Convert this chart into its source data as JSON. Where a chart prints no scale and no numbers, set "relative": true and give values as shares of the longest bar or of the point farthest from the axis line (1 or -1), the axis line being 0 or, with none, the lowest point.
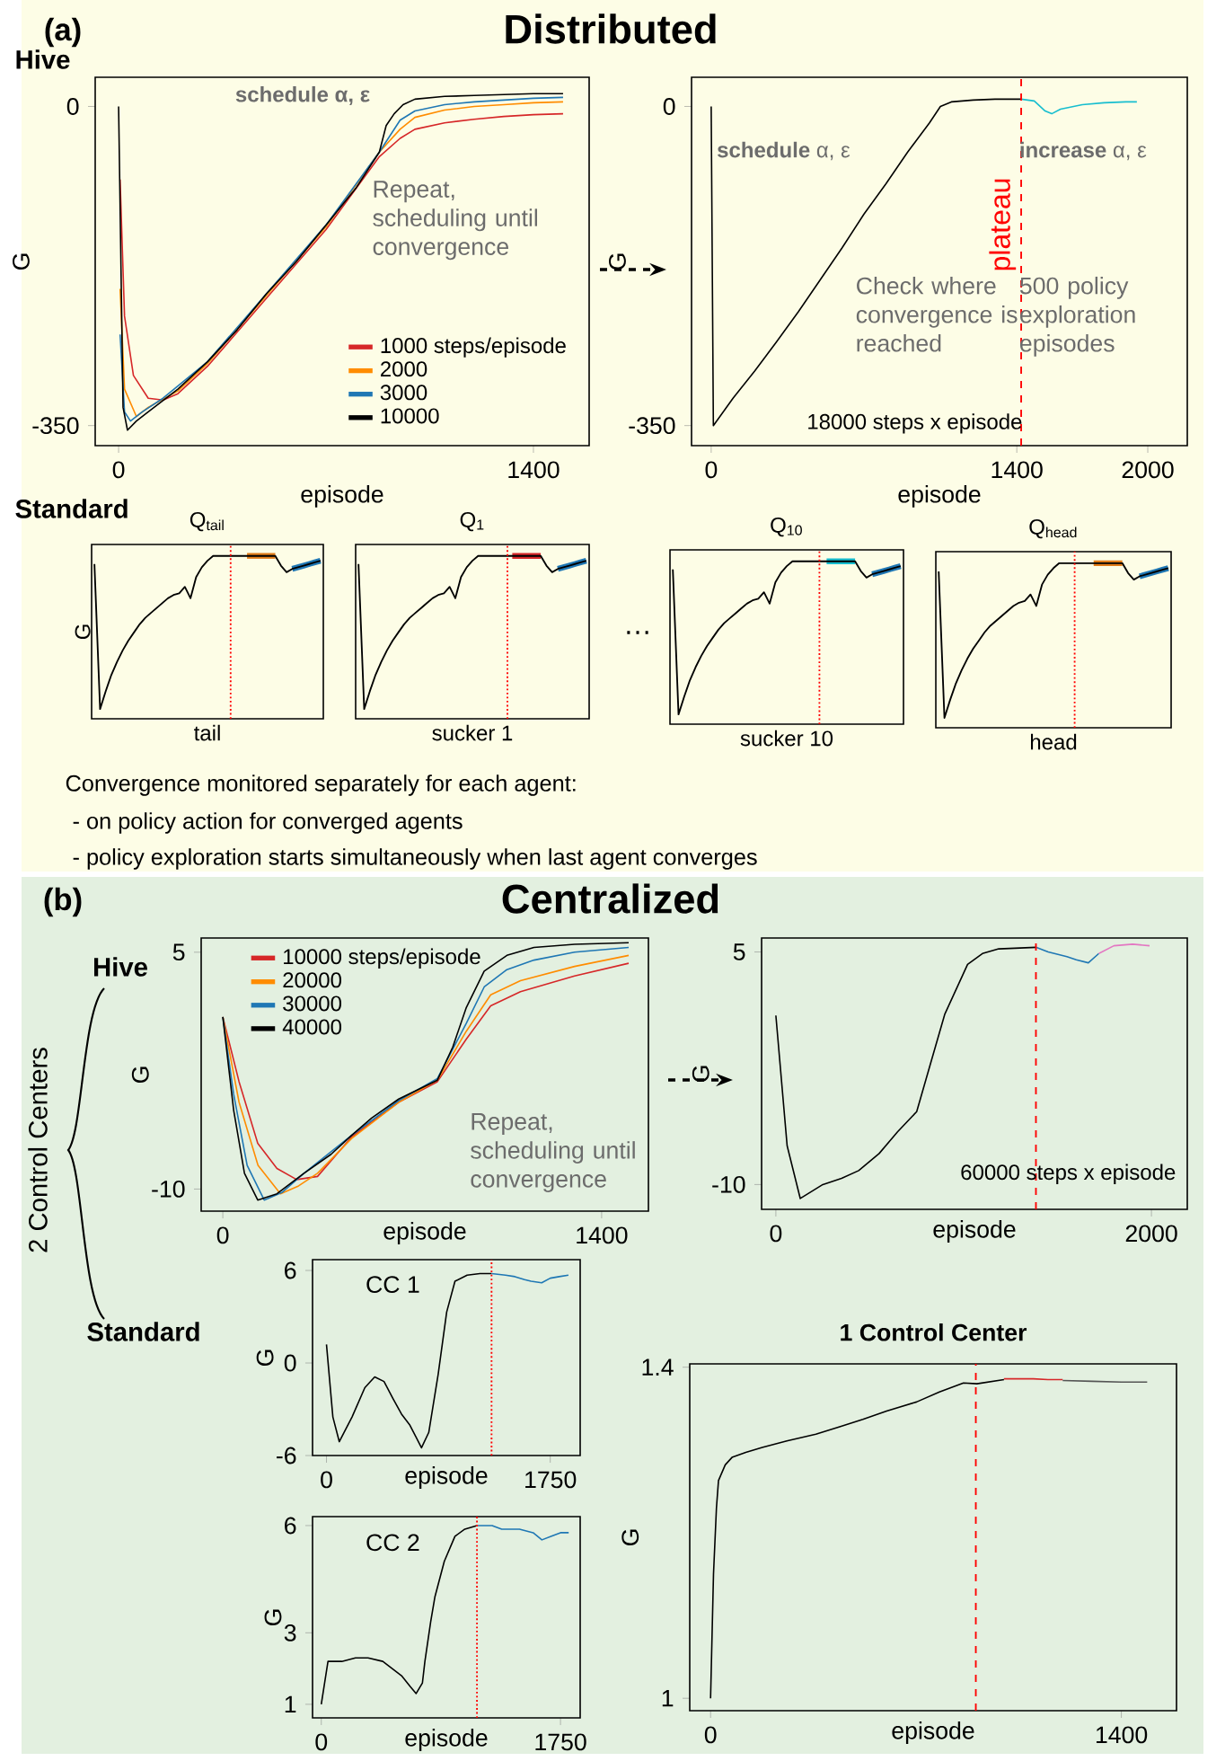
{
  "chart_data": [
    {
      "type": "other",
      "annotations": [
        "(a)",
        "Distributed",
        "Hive",
        "Standard",
        "…",
        "Convergence monitored separately for each agent:",
        "- on policy action for converged agents",
        "- policy exploration starts simultaneously when last agent converges"
      ]
    },
    {
      "type": "line",
      "xlabel": "episode",
      "ylabel": "G",
      "xlim": [
        -79,
        1588
      ],
      "ylim": [
        -372,
        32
      ],
      "xticks": [
        0,
        1400
      ],
      "yticks": [
        -350,
        0
      ],
      "legend": "bottom right",
      "annotations": [
        "**schedule** α, ε",
        "Repeat, scheduling until convergence"
      ],
      "series": [
        {
          "name": "1000 steps/episode",
          "color": "#d62728",
          "x": [
            5,
            20,
            50,
            100,
            150,
            200,
            300,
            500,
            700,
            880,
            950,
            1000,
            1100,
            1200,
            1300,
            1400,
            1500
          ],
          "values": [
            -80,
            -230,
            -295,
            -320,
            -322,
            -315,
            -285,
            -210,
            -135,
            -55,
            -35,
            -25,
            -18,
            -14,
            -11,
            -9,
            -8
          ]
        },
        {
          "name": "2000",
          "color": "#ff8c00",
          "x": [
            5,
            20,
            60,
            100,
            200,
            300,
            500,
            700,
            880,
            950,
            1000,
            1100,
            1200,
            1300,
            1400,
            1500
          ],
          "values": [
            -200,
            -310,
            -340,
            -330,
            -312,
            -282,
            -207,
            -132,
            -50,
            -25,
            -12,
            -4,
            0,
            2,
            4,
            5
          ]
        },
        {
          "name": "3000",
          "color": "#1f77b4",
          "x": [
            5,
            20,
            40,
            80,
            150,
            300,
            500,
            700,
            880,
            950,
            1000,
            1100,
            1200,
            1300,
            1400,
            1500
          ],
          "values": [
            -250,
            -335,
            -345,
            -335,
            -320,
            -280,
            -205,
            -130,
            -50,
            -15,
            -5,
            2,
            5,
            7,
            9,
            10
          ]
        },
        {
          "name": "10000",
          "color": "#000000",
          "x": [
            0,
            15,
            30,
            60,
            100,
            200,
            300,
            400,
            500,
            600,
            700,
            800,
            880,
            903,
            930,
            960,
            1000,
            1100,
            1200,
            1300,
            1400,
            1500
          ],
          "values": [
            0,
            -330,
            -355,
            -345,
            -335,
            -310,
            -280,
            -245,
            -205,
            -170,
            -130,
            -90,
            -50,
            -21,
            -8,
            2,
            8,
            11,
            12,
            13,
            14,
            14
          ]
        }
      ]
    },
    {
      "type": "line",
      "xlabel": "episode",
      "ylabel": "G",
      "xlim": [
        -90,
        2181
      ],
      "ylim": [
        -372,
        32
      ],
      "xticks": [
        0,
        1400,
        2000
      ],
      "yticks": [
        -350,
        0
      ],
      "annotations": [
        "**schedule** α, ε",
        "**increase** α, ε",
        "Check where convergence is reached",
        "500 policy exploration episodes",
        "18000 steps x episode"
      ],
      "ref_lines": [
        {
          "axis": "x",
          "value": 1420,
          "label": "plateau",
          "color": "#ff0000",
          "line_style": "dashed"
        }
      ],
      "series": [
        {
          "color": "#000000",
          "x": [
            0,
            10,
            100,
            200,
            300,
            400,
            500,
            600,
            700,
            800,
            900,
            1000,
            1050,
            1100,
            1200,
            1300,
            1420
          ],
          "values": [
            0,
            -350,
            -320,
            -290,
            -258,
            -225,
            -190,
            -155,
            -118,
            -85,
            -50,
            -18,
            0,
            5,
            7,
            8,
            8
          ]
        },
        {
          "color": "#17becf",
          "x": [
            1420,
            1480,
            1530,
            1560,
            1600,
            1700,
            1800,
            1900,
            1950
          ],
          "values": [
            8,
            6,
            -5,
            -8,
            -3,
            2,
            4,
            5,
            5
          ]
        }
      ]
    },
    {
      "type": "line",
      "relative": true,
      "title": "Q$_{tail}$",
      "ylabel": "G",
      "xlabel": "tail",
      "categories": [
        null,
        null,
        null,
        null,
        null,
        null,
        null,
        null,
        null,
        null,
        null,
        null,
        null,
        null,
        null,
        null,
        null,
        null,
        null,
        null,
        null,
        null,
        null,
        null,
        null,
        null,
        null,
        null,
        null,
        null,
        null,
        null,
        null,
        null,
        null,
        null,
        null,
        null,
        null,
        null,
        null
      ],
      "series": [
        {
          "color": "#e07b18",
          "values": [
            null,
            null,
            null,
            null,
            null,
            null,
            null,
            null,
            null,
            null,
            null,
            null,
            null,
            null,
            null,
            null,
            null,
            null,
            null,
            null,
            null,
            null,
            null,
            null,
            null,
            null,
            null,
            1.0,
            1.0,
            1.0,
            1.0,
            1.0,
            1.0,
            null,
            null,
            null,
            null,
            null,
            null,
            null,
            null
          ]
        },
        {
          "color": "#1f77b4",
          "values": [
            null,
            null,
            null,
            null,
            null,
            null,
            null,
            null,
            null,
            null,
            null,
            null,
            null,
            null,
            null,
            null,
            null,
            null,
            null,
            null,
            null,
            null,
            null,
            null,
            null,
            null,
            null,
            null,
            null,
            null,
            null,
            null,
            null,
            null,
            null,
            0.92,
            0.93,
            0.94,
            0.95,
            0.96,
            0.97
          ]
        },
        {
          "color": "#000000",
          "values": [
            0.95,
            0.06,
            0.17,
            0.27,
            0.35,
            0.42,
            0.48,
            0.53,
            0.58,
            0.62,
            0.65,
            0.68,
            0.71,
            0.74,
            0.76,
            0.77,
            0.81,
            0.74,
            0.87,
            0.93,
            0.97,
            1.0,
            1.0,
            1.0,
            1.0,
            1.0,
            1.0,
            1.0,
            1.0,
            1.0,
            1.0,
            1.0,
            1.0,
            0.94,
            0.9,
            0.92,
            0.93,
            0.94,
            0.95,
            0.96,
            0.97
          ]
        }
      ]
    },
    {
      "type": "line",
      "relative": true,
      "title": "Q$_{1}$",
      "xlabel": "sucker 1",
      "categories": [
        null,
        null,
        null,
        null,
        null,
        null,
        null,
        null,
        null,
        null,
        null,
        null,
        null,
        null,
        null,
        null,
        null,
        null,
        null,
        null,
        null,
        null,
        null,
        null,
        null,
        null,
        null,
        null,
        null,
        null,
        null,
        null,
        null,
        null,
        null,
        null,
        null,
        null,
        null,
        null,
        null
      ],
      "series": [
        {
          "color": "#d62728",
          "values": [
            null,
            null,
            null,
            null,
            null,
            null,
            null,
            null,
            null,
            null,
            null,
            null,
            null,
            null,
            null,
            null,
            null,
            null,
            null,
            null,
            null,
            null,
            null,
            null,
            null,
            null,
            null,
            1.0,
            1.0,
            1.0,
            1.0,
            1.0,
            1.0,
            null,
            null,
            null,
            null,
            null,
            null,
            null,
            null
          ]
        },
        {
          "color": "#1f77b4",
          "values": [
            null,
            null,
            null,
            null,
            null,
            null,
            null,
            null,
            null,
            null,
            null,
            null,
            null,
            null,
            null,
            null,
            null,
            null,
            null,
            null,
            null,
            null,
            null,
            null,
            null,
            null,
            null,
            null,
            null,
            null,
            null,
            null,
            null,
            null,
            null,
            0.92,
            0.93,
            0.94,
            0.95,
            0.96,
            0.97
          ]
        },
        {
          "color": "#000000",
          "values": [
            0.95,
            0.06,
            0.17,
            0.27,
            0.35,
            0.42,
            0.48,
            0.53,
            0.58,
            0.62,
            0.65,
            0.68,
            0.71,
            0.74,
            0.76,
            0.77,
            0.81,
            0.74,
            0.87,
            0.93,
            0.97,
            1.0,
            1.0,
            1.0,
            1.0,
            1.0,
            1.0,
            1.0,
            1.0,
            1.0,
            1.0,
            1.0,
            1.0,
            0.94,
            0.9,
            0.92,
            0.93,
            0.94,
            0.95,
            0.96,
            0.97
          ]
        }
      ]
    },
    {
      "type": "line",
      "relative": true,
      "title": "Q$_{10}$",
      "xlabel": "sucker 10",
      "categories": [
        null,
        null,
        null,
        null,
        null,
        null,
        null,
        null,
        null,
        null,
        null,
        null,
        null,
        null,
        null,
        null,
        null,
        null,
        null,
        null,
        null,
        null,
        null,
        null,
        null,
        null,
        null,
        null,
        null,
        null,
        null,
        null,
        null,
        null,
        null,
        null,
        null,
        null,
        null,
        null,
        null
      ],
      "series": [
        {
          "color": "#17becf",
          "values": [
            null,
            null,
            null,
            null,
            null,
            null,
            null,
            null,
            null,
            null,
            null,
            null,
            null,
            null,
            null,
            null,
            null,
            null,
            null,
            null,
            null,
            null,
            null,
            null,
            null,
            null,
            null,
            1.0,
            1.0,
            1.0,
            1.0,
            1.0,
            1.0,
            null,
            null,
            null,
            null,
            null,
            null,
            null,
            null
          ]
        },
        {
          "color": "#1f77b4",
          "values": [
            null,
            null,
            null,
            null,
            null,
            null,
            null,
            null,
            null,
            null,
            null,
            null,
            null,
            null,
            null,
            null,
            null,
            null,
            null,
            null,
            null,
            null,
            null,
            null,
            null,
            null,
            null,
            null,
            null,
            null,
            null,
            null,
            null,
            null,
            null,
            0.92,
            0.93,
            0.94,
            0.95,
            0.96,
            0.97
          ]
        },
        {
          "color": "#000000",
          "values": [
            0.95,
            0.06,
            0.17,
            0.27,
            0.35,
            0.42,
            0.48,
            0.53,
            0.58,
            0.62,
            0.65,
            0.68,
            0.71,
            0.74,
            0.76,
            0.77,
            0.81,
            0.74,
            0.87,
            0.93,
            0.97,
            1.0,
            1.0,
            1.0,
            1.0,
            1.0,
            1.0,
            1.0,
            1.0,
            1.0,
            1.0,
            1.0,
            1.0,
            0.94,
            0.9,
            0.92,
            0.93,
            0.94,
            0.95,
            0.96,
            0.97
          ]
        }
      ]
    },
    {
      "type": "line",
      "relative": true,
      "title": "Q$_{head}$",
      "xlabel": "head",
      "categories": [
        null,
        null,
        null,
        null,
        null,
        null,
        null,
        null,
        null,
        null,
        null,
        null,
        null,
        null,
        null,
        null,
        null,
        null,
        null,
        null,
        null,
        null,
        null,
        null,
        null,
        null,
        null,
        null,
        null,
        null,
        null,
        null,
        null,
        null,
        null,
        null,
        null,
        null,
        null,
        null,
        null
      ],
      "series": [
        {
          "color": "#e07b18",
          "values": [
            null,
            null,
            null,
            null,
            null,
            null,
            null,
            null,
            null,
            null,
            null,
            null,
            null,
            null,
            null,
            null,
            null,
            null,
            null,
            null,
            null,
            null,
            null,
            null,
            null,
            null,
            null,
            1.0,
            1.0,
            1.0,
            1.0,
            1.0,
            1.0,
            null,
            null,
            null,
            null,
            null,
            null,
            null,
            null
          ]
        },
        {
          "color": "#1f77b4",
          "values": [
            null,
            null,
            null,
            null,
            null,
            null,
            null,
            null,
            null,
            null,
            null,
            null,
            null,
            null,
            null,
            null,
            null,
            null,
            null,
            null,
            null,
            null,
            null,
            null,
            null,
            null,
            null,
            null,
            null,
            null,
            null,
            null,
            null,
            null,
            null,
            0.92,
            0.93,
            0.94,
            0.95,
            0.96,
            0.97
          ]
        },
        {
          "color": "#000000",
          "values": [
            0.95,
            0.06,
            0.17,
            0.27,
            0.35,
            0.42,
            0.48,
            0.53,
            0.58,
            0.62,
            0.65,
            0.68,
            0.71,
            0.74,
            0.76,
            0.77,
            0.81,
            0.74,
            0.87,
            0.93,
            0.97,
            1.0,
            1.0,
            1.0,
            1.0,
            1.0,
            1.0,
            1.0,
            1.0,
            1.0,
            1.0,
            1.0,
            1.0,
            0.94,
            0.9,
            0.92,
            0.93,
            0.94,
            0.95,
            0.96,
            0.97
          ]
        }
      ]
    },
    {
      "type": "other",
      "annotations": [
        "(b)",
        "Centralized",
        "2 Control Centers",
        "Hive",
        "Standard"
      ]
    },
    {
      "type": "line",
      "xlabel": "episode",
      "ylabel": "G",
      "xlim": [
        -80,
        1573
      ],
      "ylim": [
        -11.4,
        5.9
      ],
      "xticks": [
        0,
        1400
      ],
      "yticks": [
        -10,
        5
      ],
      "legend": "top left",
      "annotations": [
        "Repeat, scheduling until convergence"
      ],
      "series": [
        {
          "name": "10000 steps/episode",
          "color": "#d62728",
          "x": [
            0,
            60,
            129,
            200,
            273,
            350,
            476,
            650,
            793,
            900,
            990,
            1100,
            1300,
            1500
          ],
          "values": [
            0.9,
            -3.2,
            -7.1,
            -8.7,
            -9.4,
            -9.2,
            -6.7,
            -4.5,
            -3.2,
            -0.5,
            1.6,
            2.5,
            3.5,
            4.3
          ]
        },
        {
          "name": "20000",
          "color": "#ff8c00",
          "x": [
            0,
            60,
            130,
            213,
            280,
            350,
            476,
            650,
            793,
            900,
            990,
            1100,
            1300,
            1500
          ],
          "values": [
            0.9,
            -4.5,
            -8.5,
            -10.3,
            -9.8,
            -9,
            -6.8,
            -4.5,
            -3.1,
            0,
            2.3,
            3.2,
            4.1,
            4.8
          ]
        },
        {
          "name": "30000",
          "color": "#1f77b4",
          "x": [
            0,
            40,
            90,
            153,
            220,
            300,
            476,
            650,
            793,
            900,
            966,
            1050,
            1150,
            1300,
            1500
          ],
          "values": [
            0.9,
            -4,
            -8.5,
            -10.7,
            -10.2,
            -9,
            -6.6,
            -4.4,
            -3.0,
            0.5,
            2.8,
            3.9,
            4.5,
            5.0,
            5.3
          ]
        },
        {
          "name": "40000",
          "color": "#000000",
          "x": [
            0,
            40,
            80,
            129,
            200,
            300,
            400,
            476,
            550,
            650,
            793,
            850,
            900,
            966,
            1050,
            1150,
            1300,
            1500
          ],
          "values": [
            0.9,
            -5,
            -9,
            -10.7,
            -10.3,
            -9,
            -7.8,
            -6.6,
            -5.5,
            -4.3,
            -3.1,
            -1.0,
            1.5,
            3.8,
            4.8,
            5.3,
            5.5,
            5.6
          ]
        }
      ]
    },
    {
      "type": "line",
      "xlabel": "episode",
      "ylabel": "G",
      "xlim": [
        -76,
        2191
      ],
      "ylim": [
        -11.6,
        5.9
      ],
      "xticks": [
        0,
        2000
      ],
      "yticks": [
        -10,
        5
      ],
      "annotations": [
        "60000 steps x episode"
      ],
      "ref_lines": [
        {
          "axis": "x",
          "value": 1385,
          "color": "#ff0000",
          "line_style": "dashed"
        }
      ],
      "series": [
        {
          "color": "#000000",
          "x": [
            0,
            60,
            130,
            250,
            350,
            441,
            550,
            648,
            750,
            814,
            900,
            1021,
            1100,
            1187,
            1385
          ],
          "values": [
            0.9,
            -7.5,
            -10.9,
            -10.0,
            -9.6,
            -9.1,
            -8.0,
            -6.6,
            -5.3,
            -2.6,
            1.0,
            4.2,
            4.9,
            5.2,
            5.3
          ]
        },
        {
          "color": "#1f77b4",
          "x": [
            1385,
            1450,
            1550,
            1600,
            1664,
            1720
          ],
          "values": [
            5.3,
            5.0,
            4.7,
            4.5,
            4.3,
            4.9
          ]
        },
        {
          "color": "#e377c2",
          "x": [
            1720,
            1800,
            1900,
            1990
          ],
          "values": [
            4.9,
            5.4,
            5.5,
            5.4
          ]
        }
      ]
    },
    {
      "type": "line",
      "title": "CC 1",
      "xlabel": "episode",
      "ylabel": "G",
      "xlim": [
        -109,
        1984
      ],
      "ylim": [
        -6,
        6.7
      ],
      "xticks": [
        0,
        1750
      ],
      "yticks": [
        -6,
        0,
        6
      ],
      "ref_lines": [
        {
          "axis": "x",
          "value": 1291,
          "color": "#ff0000",
          "line_style": "dotted"
        }
      ],
      "series": [
        {
          "color": "#000000",
          "x": [
            0,
            50,
            100,
            200,
            300,
            377,
            450,
            520,
            586,
            650,
            700,
            743,
            800,
            874,
            940,
            1005,
            1100,
            1200,
            1291
          ],
          "values": [
            1.2,
            -3.5,
            -5.1,
            -3.5,
            -1.6,
            -0.9,
            -1.2,
            -2.3,
            -3.3,
            -4.0,
            -4.8,
            -5.5,
            -4.5,
            -0.7,
            3.3,
            5.3,
            5.7,
            5.8,
            5.8
          ]
        },
        {
          "color": "#1f77b4",
          "x": [
            1291,
            1400,
            1474,
            1550,
            1600,
            1683,
            1750,
            1820,
            1892
          ],
          "values": [
            5.8,
            5.7,
            5.6,
            5.4,
            5.3,
            5.2,
            5.5,
            5.6,
            5.7
          ]
        }
      ]
    },
    {
      "type": "line",
      "title": "CC 2",
      "xlabel": "episode",
      "ylabel": "G",
      "xlim": [
        -64,
        1894
      ],
      "ylim": [
        0.62,
        6.25
      ],
      "xticks": [
        0,
        1750
      ],
      "yticks": [
        1,
        3,
        6
      ],
      "ref_lines": [
        {
          "axis": "x",
          "value": 1139,
          "color": "#ff0000",
          "line_style": "dotted"
        }
      ],
      "series": [
        {
          "color": "#000000",
          "x": [
            0,
            49,
            150,
            250,
            342,
            450,
            587,
            650,
            694,
            740,
            758,
            800,
            831,
            900,
            978,
            1050,
            1139
          ],
          "values": [
            1.0,
            2.2,
            2.2,
            2.3,
            2.3,
            2.2,
            1.8,
            1.5,
            1.3,
            1.6,
            2.2,
            3.3,
            4.0,
            5.0,
            5.7,
            5.9,
            6.0
          ]
        },
        {
          "color": "#1f77b4",
          "x": [
            1139,
            1250,
            1320,
            1450,
            1550,
            1614,
            1680,
            1750,
            1810
          ],
          "values": [
            6.0,
            6.0,
            5.9,
            5.9,
            5.8,
            5.6,
            5.7,
            5.8,
            5.8
          ]
        }
      ]
    },
    {
      "type": "line",
      "title": "1 Control Center",
      "xlabel": "episode",
      "ylabel": "G",
      "xlim": [
        -71,
        1588
      ],
      "ylim": [
        0.985,
        1.404
      ],
      "xticks": [
        0,
        1400
      ],
      "yticks": [
        1,
        1.4
      ],
      "ref_lines": [
        {
          "axis": "x",
          "value": 904,
          "color": "#ff0000",
          "line_style": "dashed"
        }
      ],
      "series": [
        {
          "color": "#000000",
          "x": [
            0,
            10,
            20,
            27,
            50,
            73,
            120,
            176,
            260,
            359,
            440,
            519,
            600,
            702,
            780,
            862,
            908,
            1000
          ],
          "values": [
            1.0,
            1.15,
            1.23,
            1.263,
            1.282,
            1.291,
            1.297,
            1.303,
            1.311,
            1.319,
            1.328,
            1.337,
            1.347,
            1.358,
            1.37,
            1.381,
            1.38,
            1.385
          ]
        },
        {
          "color": "#d62728",
          "x": [
            1000,
            1050,
            1100,
            1150,
            1200
          ],
          "values": [
            1.386,
            1.386,
            1.386,
            1.385,
            1.385
          ]
        },
        {
          "color": "#555555",
          "x": [
            1200,
            1300,
            1400,
            1488
          ],
          "values": [
            1.384,
            1.383,
            1.382,
            1.382
          ]
        }
      ]
    }
  ]
}
